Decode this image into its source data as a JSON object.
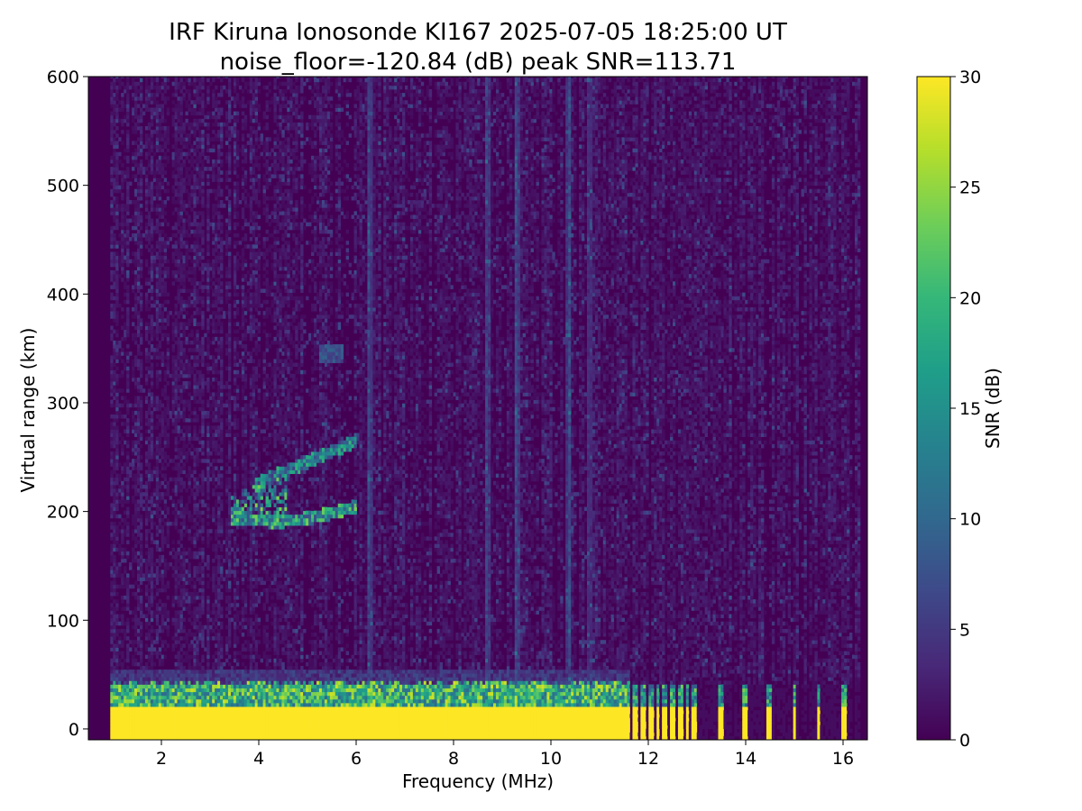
{
  "chart_data": {
    "type": "heatmap",
    "title_line1": "IRF Kiruna Ionosonde KI167 2025-07-05 18:25:00  UT",
    "title_line2": "noise_floor=-120.84 (dB) peak SNR=113.71",
    "xlabel": "Frequency (MHz)",
    "ylabel": "Virtual range (km)",
    "colorbar_label": "SNR (dB)",
    "xlim": [
      0.5,
      16.5
    ],
    "ylim": [
      -10,
      600
    ],
    "clim": [
      0,
      30
    ],
    "x_ticks": [
      2,
      4,
      6,
      8,
      10,
      12,
      14,
      16
    ],
    "x_tick_labels": [
      "2",
      "4",
      "6",
      "8",
      "10",
      "12",
      "14",
      "16"
    ],
    "y_ticks": [
      0,
      100,
      200,
      300,
      400,
      500,
      600
    ],
    "y_tick_labels": [
      "0",
      "100",
      "200",
      "300",
      "400",
      "500",
      "600"
    ],
    "colorbar_ticks": [
      0,
      5,
      10,
      15,
      20,
      25,
      30
    ],
    "colorbar_tick_labels": [
      "0",
      "5",
      "10",
      "15",
      "20",
      "25",
      "30"
    ],
    "colormap": "viridis",
    "colormap_stops": [
      "#440154",
      "#482878",
      "#3e4989",
      "#31688e",
      "#26828e",
      "#1f9e89",
      "#35b779",
      "#6ece58",
      "#b5de2b",
      "#fde725"
    ],
    "features": {
      "freq_start": 0.95,
      "freq_end": 16.3,
      "ground_echo": {
        "range_top_km": 22,
        "range_edge_km": 40,
        "dense_freq_end": 11.6,
        "snr": 30
      },
      "sparse_channels_mhz": [
        11.75,
        11.9,
        12.05,
        12.2,
        12.35,
        12.5,
        12.65,
        12.8,
        12.95,
        13.5,
        14.0,
        14.5,
        15.0,
        15.5,
        16.0
      ],
      "f_layer_trace": {
        "freq_range": [
          3.4,
          6.0
        ],
        "range_km": [
          185,
          265
        ],
        "snr_peak": 25
      },
      "sporadic_patch": {
        "freq": 5.5,
        "range_km": 345,
        "snr": 8
      },
      "interference_lines_mhz": [
        6.3,
        10.35,
        10.8,
        8.7,
        9.3
      ]
    }
  }
}
